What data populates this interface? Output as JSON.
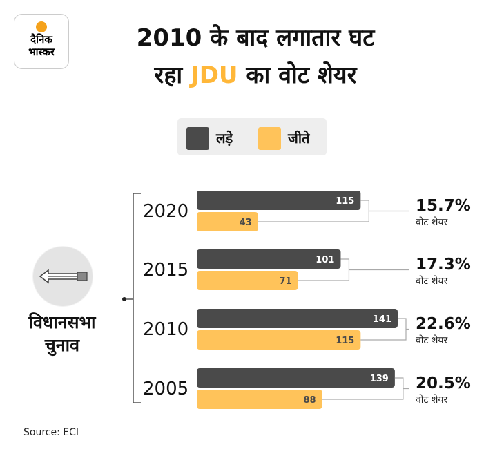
{
  "brand": {
    "line1": "दैनिक",
    "line2": "भास्कर",
    "sun_color": "#f5a21b"
  },
  "title": {
    "part1": "2010 के बाद लगातार घट",
    "part2_prefix": "रहा ",
    "highlight": "JDU",
    "part2_suffix": " का वोट शेयर"
  },
  "side_label": {
    "line1": "विधानसभा",
    "line2": "चुनाव",
    "icon": "arrow-icon"
  },
  "source": "Source: ECI",
  "colors": {
    "contested": "#4a4a4a",
    "won": "#ffc35a",
    "highlight": "#ffb739"
  },
  "chart_data": {
    "type": "bar",
    "orientation": "horizontal",
    "title": "2010 के बाद लगातार घट रहा JDU का वोट शेयर",
    "categories": [
      "2020",
      "2015",
      "2010",
      "2005"
    ],
    "series": [
      {
        "name": "लड़े",
        "values": [
          115,
          101,
          141,
          139
        ]
      },
      {
        "name": "जीते",
        "values": [
          43,
          71,
          115,
          88
        ]
      }
    ],
    "annotations": [
      {
        "category": "2020",
        "value": "15.7%",
        "label": "वोट शेयर"
      },
      {
        "category": "2015",
        "value": "17.3%",
        "label": "वोट शेयर"
      },
      {
        "category": "2010",
        "value": "22.6%",
        "label": "वोट शेयर"
      },
      {
        "category": "2005",
        "value": "20.5%",
        "label": "वोट शेयर"
      }
    ],
    "legend": {
      "position": "top",
      "entries": [
        "लड़े",
        "जीते"
      ]
    },
    "xlim": [
      0,
      141
    ],
    "grid": false
  }
}
